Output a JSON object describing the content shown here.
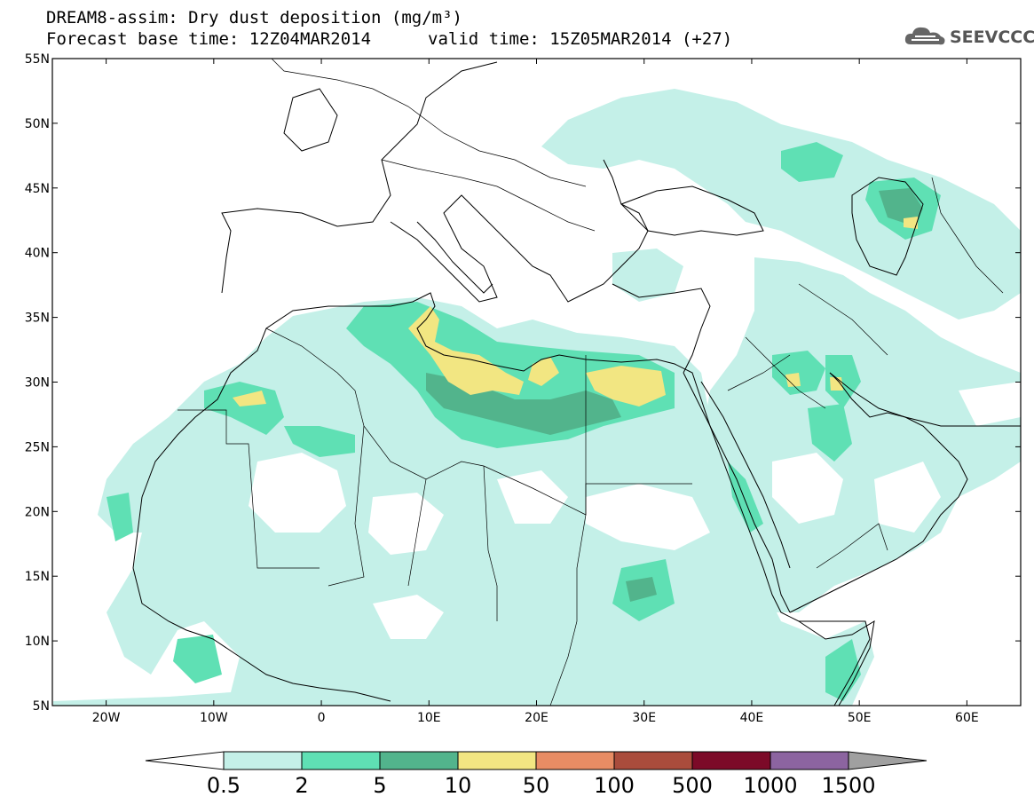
{
  "header": {
    "title_line1": "DREAM8-assim: Dry dust deposition (mg/m³)",
    "title_line2": "Forecast base time: 12Z04MAR2014",
    "valid_time": "valid time: 15Z05MAR2014 (+27)"
  },
  "logo": {
    "text": "SEEVCCC",
    "icon": "cloud-icon"
  },
  "map": {
    "lon_range": [
      -25,
      65
    ],
    "lat_range": [
      5,
      55
    ],
    "lat_ticks": [
      {
        "value": 55,
        "label": "55N"
      },
      {
        "value": 50,
        "label": "50N"
      },
      {
        "value": 45,
        "label": "45N"
      },
      {
        "value": 40,
        "label": "40N"
      },
      {
        "value": 35,
        "label": "35N"
      },
      {
        "value": 30,
        "label": "30N"
      },
      {
        "value": 25,
        "label": "25N"
      },
      {
        "value": 20,
        "label": "20N"
      },
      {
        "value": 15,
        "label": "15N"
      },
      {
        "value": 10,
        "label": "10N"
      },
      {
        "value": 5,
        "label": "5N"
      }
    ],
    "lon_ticks": [
      {
        "value": -20,
        "label": "20W"
      },
      {
        "value": -10,
        "label": "10W"
      },
      {
        "value": 0,
        "label": "0"
      },
      {
        "value": 10,
        "label": "10E"
      },
      {
        "value": 20,
        "label": "20E"
      },
      {
        "value": 30,
        "label": "30E"
      },
      {
        "value": 40,
        "label": "40E"
      },
      {
        "value": 50,
        "label": "50E"
      },
      {
        "value": 60,
        "label": "60E"
      }
    ]
  },
  "colorbar": {
    "labels": [
      "0.5",
      "2",
      "5",
      "10",
      "50",
      "100",
      "500",
      "1000",
      "1500"
    ],
    "colors": [
      "#c4f0e8",
      "#5fe0b4",
      "#52b48c",
      "#f2e682",
      "#e88c64",
      "#aa4c3c",
      "#7c0a28",
      "#8c64a0"
    ],
    "under_color": "#ffffff",
    "over_color": "#a0a0a0"
  }
}
